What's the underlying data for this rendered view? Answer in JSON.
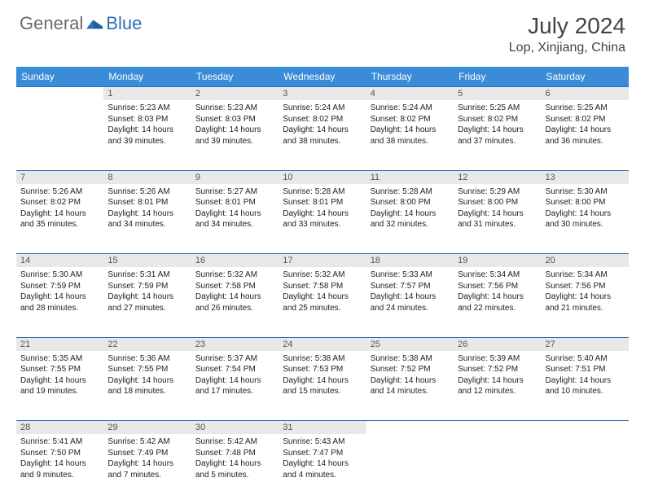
{
  "brand": {
    "word1": "General",
    "word2": "Blue"
  },
  "title": "July 2024",
  "location": "Lop, Xinjiang, China",
  "colors": {
    "header_bg": "#3a8bd8",
    "header_text": "#ffffff",
    "rule": "#2c6fb5",
    "daynum_bg": "#e8e8e8",
    "text": "#222222",
    "brand_gray": "#6b6b6b",
    "brand_blue": "#2c6fb5"
  },
  "weekdays": [
    "Sunday",
    "Monday",
    "Tuesday",
    "Wednesday",
    "Thursday",
    "Friday",
    "Saturday"
  ],
  "weeks": [
    [
      null,
      {
        "n": "1",
        "sr": "5:23 AM",
        "ss": "8:03 PM",
        "dl": "14 hours and 39 minutes."
      },
      {
        "n": "2",
        "sr": "5:23 AM",
        "ss": "8:03 PM",
        "dl": "14 hours and 39 minutes."
      },
      {
        "n": "3",
        "sr": "5:24 AM",
        "ss": "8:02 PM",
        "dl": "14 hours and 38 minutes."
      },
      {
        "n": "4",
        "sr": "5:24 AM",
        "ss": "8:02 PM",
        "dl": "14 hours and 38 minutes."
      },
      {
        "n": "5",
        "sr": "5:25 AM",
        "ss": "8:02 PM",
        "dl": "14 hours and 37 minutes."
      },
      {
        "n": "6",
        "sr": "5:25 AM",
        "ss": "8:02 PM",
        "dl": "14 hours and 36 minutes."
      }
    ],
    [
      {
        "n": "7",
        "sr": "5:26 AM",
        "ss": "8:02 PM",
        "dl": "14 hours and 35 minutes."
      },
      {
        "n": "8",
        "sr": "5:26 AM",
        "ss": "8:01 PM",
        "dl": "14 hours and 34 minutes."
      },
      {
        "n": "9",
        "sr": "5:27 AM",
        "ss": "8:01 PM",
        "dl": "14 hours and 34 minutes."
      },
      {
        "n": "10",
        "sr": "5:28 AM",
        "ss": "8:01 PM",
        "dl": "14 hours and 33 minutes."
      },
      {
        "n": "11",
        "sr": "5:28 AM",
        "ss": "8:00 PM",
        "dl": "14 hours and 32 minutes."
      },
      {
        "n": "12",
        "sr": "5:29 AM",
        "ss": "8:00 PM",
        "dl": "14 hours and 31 minutes."
      },
      {
        "n": "13",
        "sr": "5:30 AM",
        "ss": "8:00 PM",
        "dl": "14 hours and 30 minutes."
      }
    ],
    [
      {
        "n": "14",
        "sr": "5:30 AM",
        "ss": "7:59 PM",
        "dl": "14 hours and 28 minutes."
      },
      {
        "n": "15",
        "sr": "5:31 AM",
        "ss": "7:59 PM",
        "dl": "14 hours and 27 minutes."
      },
      {
        "n": "16",
        "sr": "5:32 AM",
        "ss": "7:58 PM",
        "dl": "14 hours and 26 minutes."
      },
      {
        "n": "17",
        "sr": "5:32 AM",
        "ss": "7:58 PM",
        "dl": "14 hours and 25 minutes."
      },
      {
        "n": "18",
        "sr": "5:33 AM",
        "ss": "7:57 PM",
        "dl": "14 hours and 24 minutes."
      },
      {
        "n": "19",
        "sr": "5:34 AM",
        "ss": "7:56 PM",
        "dl": "14 hours and 22 minutes."
      },
      {
        "n": "20",
        "sr": "5:34 AM",
        "ss": "7:56 PM",
        "dl": "14 hours and 21 minutes."
      }
    ],
    [
      {
        "n": "21",
        "sr": "5:35 AM",
        "ss": "7:55 PM",
        "dl": "14 hours and 19 minutes."
      },
      {
        "n": "22",
        "sr": "5:36 AM",
        "ss": "7:55 PM",
        "dl": "14 hours and 18 minutes."
      },
      {
        "n": "23",
        "sr": "5:37 AM",
        "ss": "7:54 PM",
        "dl": "14 hours and 17 minutes."
      },
      {
        "n": "24",
        "sr": "5:38 AM",
        "ss": "7:53 PM",
        "dl": "14 hours and 15 minutes."
      },
      {
        "n": "25",
        "sr": "5:38 AM",
        "ss": "7:52 PM",
        "dl": "14 hours and 14 minutes."
      },
      {
        "n": "26",
        "sr": "5:39 AM",
        "ss": "7:52 PM",
        "dl": "14 hours and 12 minutes."
      },
      {
        "n": "27",
        "sr": "5:40 AM",
        "ss": "7:51 PM",
        "dl": "14 hours and 10 minutes."
      }
    ],
    [
      {
        "n": "28",
        "sr": "5:41 AM",
        "ss": "7:50 PM",
        "dl": "14 hours and 9 minutes."
      },
      {
        "n": "29",
        "sr": "5:42 AM",
        "ss": "7:49 PM",
        "dl": "14 hours and 7 minutes."
      },
      {
        "n": "30",
        "sr": "5:42 AM",
        "ss": "7:48 PM",
        "dl": "14 hours and 5 minutes."
      },
      {
        "n": "31",
        "sr": "5:43 AM",
        "ss": "7:47 PM",
        "dl": "14 hours and 4 minutes."
      },
      null,
      null,
      null
    ]
  ],
  "labels": {
    "sunrise": "Sunrise:",
    "sunset": "Sunset:",
    "daylight": "Daylight:"
  }
}
